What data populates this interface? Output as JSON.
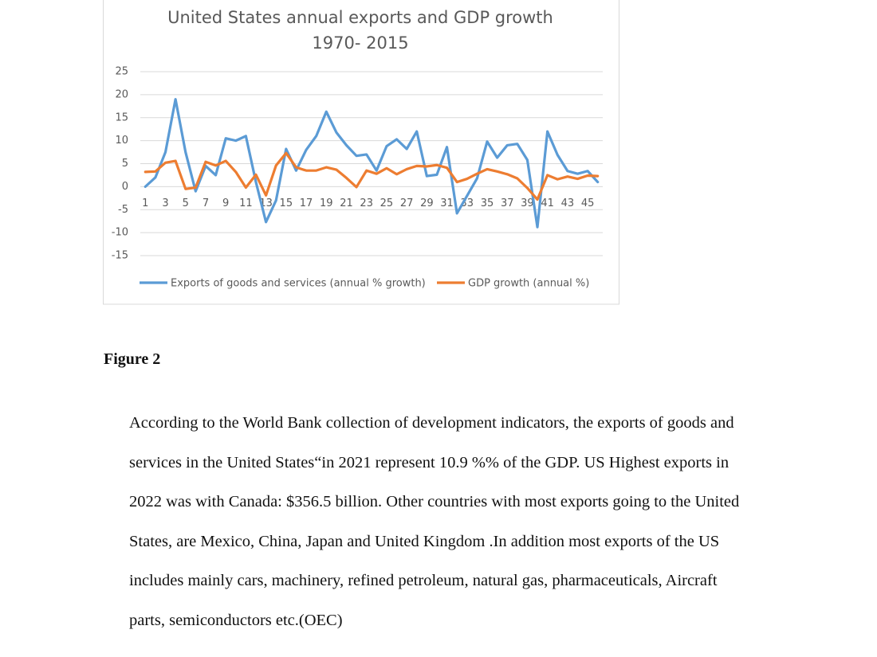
{
  "chart_data": {
    "type": "line",
    "title": "United States annual exports and GDP growth",
    "subtitle": "1970- 2015",
    "categories": [
      "1",
      null,
      "3",
      null,
      "5",
      null,
      "7",
      null,
      "9",
      null,
      "11",
      null,
      "13",
      null,
      "15",
      null,
      "17",
      null,
      "19",
      null,
      "21",
      null,
      "23",
      null,
      "25",
      null,
      "27",
      null,
      "29",
      null,
      "31",
      null,
      "33",
      null,
      "35",
      null,
      "37",
      null,
      "39",
      null,
      "41",
      null,
      "43",
      null,
      "45",
      null
    ],
    "series": [
      {
        "name": "Exports of goods and services (annual % growth)",
        "color": "#5b9bd5",
        "values": [
          0,
          2,
          7.5,
          19,
          7.5,
          -1,
          4.5,
          2.5,
          10.5,
          10,
          11,
          1,
          -7.7,
          -3,
          8.2,
          3.5,
          8,
          11,
          16.3,
          11.8,
          9,
          6.7,
          7,
          3.5,
          8.8,
          10.3,
          8.2,
          12,
          2.3,
          2.6,
          8.6,
          -5.8,
          -2,
          1.8,
          9.8,
          6.3,
          9,
          9.3,
          5.8,
          -8.8,
          12,
          6.9,
          3.4,
          2.8,
          3.4,
          1
        ]
      },
      {
        "name": "GDP growth (annual %)",
        "color": "#ed7d31",
        "values": [
          3.2,
          3.3,
          5.2,
          5.6,
          -0.5,
          -0.2,
          5.4,
          4.6,
          5.6,
          3.2,
          -0.2,
          2.6,
          -1.9,
          4.6,
          7.3,
          4.2,
          3.5,
          3.5,
          4.2,
          3.7,
          1.9,
          -0.1,
          3.5,
          2.8,
          4,
          2.7,
          3.8,
          4.5,
          4.4,
          4.7,
          4.1,
          1,
          1.7,
          2.8,
          3.8,
          3.3,
          2.7,
          1.8,
          -0.3,
          -2.8,
          2.5,
          1.6,
          2.2,
          1.7,
          2.4,
          2.3
        ]
      }
    ],
    "ylim": [
      -15,
      25
    ],
    "yticks": [
      -15,
      -10,
      -5,
      0,
      5,
      10,
      15,
      20,
      25
    ],
    "grid": true,
    "legend": "bottom"
  },
  "figure_label": "Figure 2",
  "paragraph_lines": [
    "According to the World Bank collection of development indicators, the exports of goods and",
    "services in the United States“in 2021 represent 10.9 %% of the GDP. US Highest exports in",
    "2022 was with Canada: $356.5 billion. Other countries with most exports going to the United",
    "States, are Mexico, China, Japan and United Kingdom .In addition most exports of the US",
    "includes mainly cars, machinery, refined petroleum, natural gas, pharmaceuticals, Aircraft",
    "parts, semiconductors etc.(OEC)"
  ]
}
